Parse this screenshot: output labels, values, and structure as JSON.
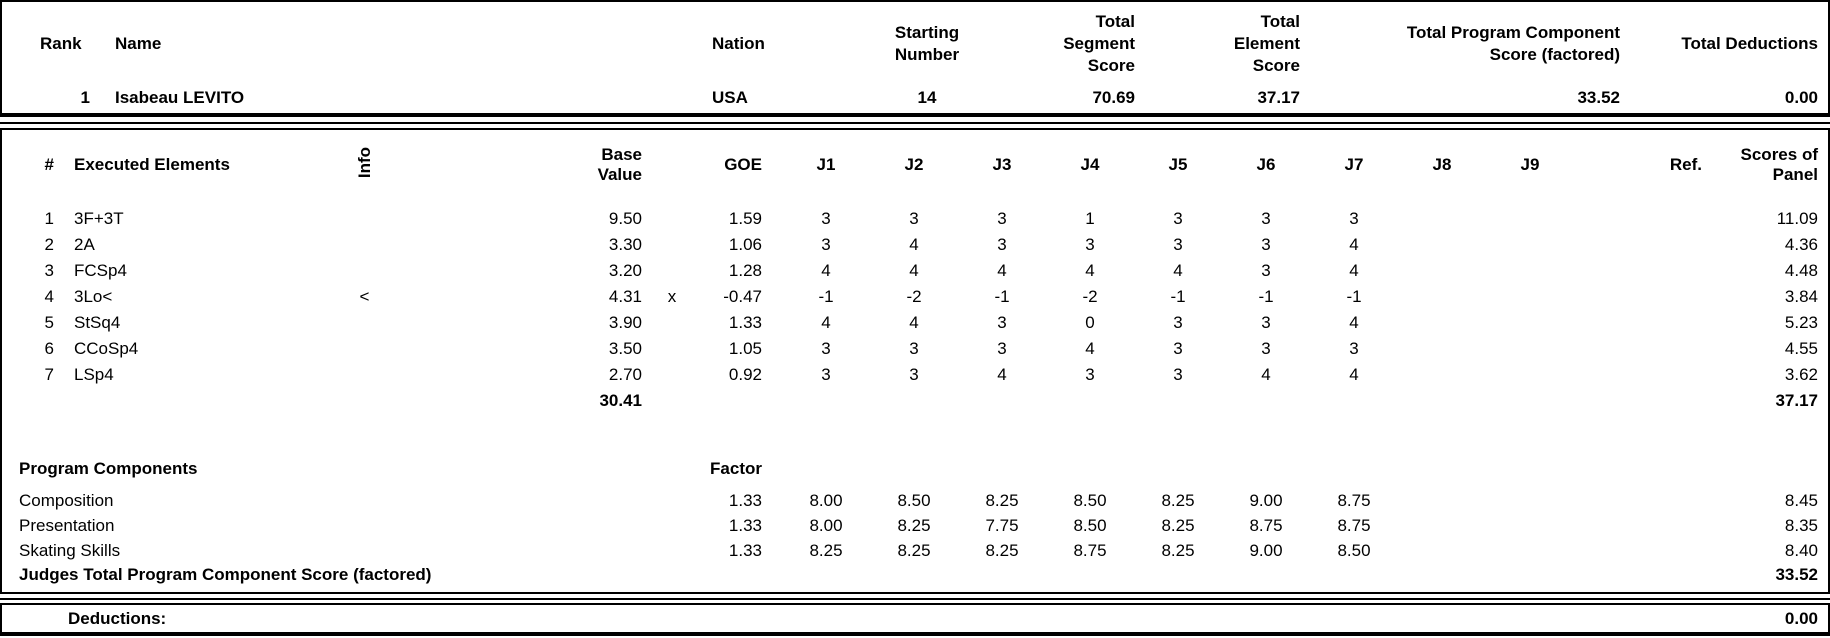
{
  "summary": {
    "header": {
      "rank": "Rank",
      "name": "Name",
      "nation": "Nation",
      "starting_number": "Starting\nNumber",
      "total_segment_score": "Total\nSegment\nScore",
      "total_element_score": "Total\nElement\nScore",
      "total_pcs_factored": "Total Program Component\nScore (factored)",
      "total_deductions": "Total Deductions"
    },
    "row": {
      "rank": "1",
      "name": "Isabeau LEVITO",
      "nation": "USA",
      "starting_number": "14",
      "total_segment_score": "70.69",
      "total_element_score": "37.17",
      "total_pcs_factored": "33.52",
      "total_deductions": "0.00"
    }
  },
  "elements": {
    "header": {
      "num": "#",
      "executed_elements": "Executed Elements",
      "info": "Info",
      "base_value": "Base\nValue",
      "goe": "GOE",
      "judges": [
        "J1",
        "J2",
        "J3",
        "J4",
        "J5",
        "J6",
        "J7",
        "J8",
        "J9"
      ],
      "ref": "Ref.",
      "scores_of_panel": "Scores of\nPanel"
    },
    "rows": [
      {
        "num": "1",
        "element": "3F+3T",
        "info": "",
        "base_value": "9.50",
        "x": "",
        "goe": "1.59",
        "judges": [
          "3",
          "3",
          "3",
          "1",
          "3",
          "3",
          "3",
          "",
          ""
        ],
        "ref": "",
        "panel": "11.09"
      },
      {
        "num": "2",
        "element": "2A",
        "info": "",
        "base_value": "3.30",
        "x": "",
        "goe": "1.06",
        "judges": [
          "3",
          "4",
          "3",
          "3",
          "3",
          "3",
          "4",
          "",
          ""
        ],
        "ref": "",
        "panel": "4.36"
      },
      {
        "num": "3",
        "element": "FCSp4",
        "info": "",
        "base_value": "3.20",
        "x": "",
        "goe": "1.28",
        "judges": [
          "4",
          "4",
          "4",
          "4",
          "4",
          "3",
          "4",
          "",
          ""
        ],
        "ref": "",
        "panel": "4.48"
      },
      {
        "num": "4",
        "element": "3Lo<",
        "info": "<",
        "base_value": "4.31",
        "x": "x",
        "goe": "-0.47",
        "judges": [
          "-1",
          "-2",
          "-1",
          "-2",
          "-1",
          "-1",
          "-1",
          "",
          ""
        ],
        "ref": "",
        "panel": "3.84"
      },
      {
        "num": "5",
        "element": "StSq4",
        "info": "",
        "base_value": "3.90",
        "x": "",
        "goe": "1.33",
        "judges": [
          "4",
          "4",
          "3",
          "0",
          "3",
          "3",
          "4",
          "",
          ""
        ],
        "ref": "",
        "panel": "5.23"
      },
      {
        "num": "6",
        "element": "CCoSp4",
        "info": "",
        "base_value": "3.50",
        "x": "",
        "goe": "1.05",
        "judges": [
          "3",
          "3",
          "3",
          "4",
          "3",
          "3",
          "3",
          "",
          ""
        ],
        "ref": "",
        "panel": "4.55"
      },
      {
        "num": "7",
        "element": "LSp4",
        "info": "",
        "base_value": "2.70",
        "x": "",
        "goe": "0.92",
        "judges": [
          "3",
          "3",
          "4",
          "3",
          "3",
          "4",
          "4",
          "",
          ""
        ],
        "ref": "",
        "panel": "3.62"
      }
    ],
    "totals": {
      "base_value": "30.41",
      "panel": "37.17"
    }
  },
  "components": {
    "title": "Program Components",
    "factor_label": "Factor",
    "rows": [
      {
        "name": "Composition",
        "factor": "1.33",
        "judges": [
          "8.00",
          "8.50",
          "8.25",
          "8.50",
          "8.25",
          "9.00",
          "8.75",
          "",
          ""
        ],
        "panel": "8.45"
      },
      {
        "name": "Presentation",
        "factor": "1.33",
        "judges": [
          "8.00",
          "8.25",
          "7.75",
          "8.50",
          "8.25",
          "8.75",
          "8.75",
          "",
          ""
        ],
        "panel": "8.35"
      },
      {
        "name": "Skating Skills",
        "factor": "1.33",
        "judges": [
          "8.25",
          "8.25",
          "8.25",
          "8.75",
          "8.25",
          "9.00",
          "8.50",
          "",
          ""
        ],
        "panel": "8.40"
      }
    ],
    "total_label": "Judges Total Program Component Score (factored)",
    "total_value": "33.52"
  },
  "deductions": {
    "label": "Deductions:",
    "value": "0.00"
  }
}
